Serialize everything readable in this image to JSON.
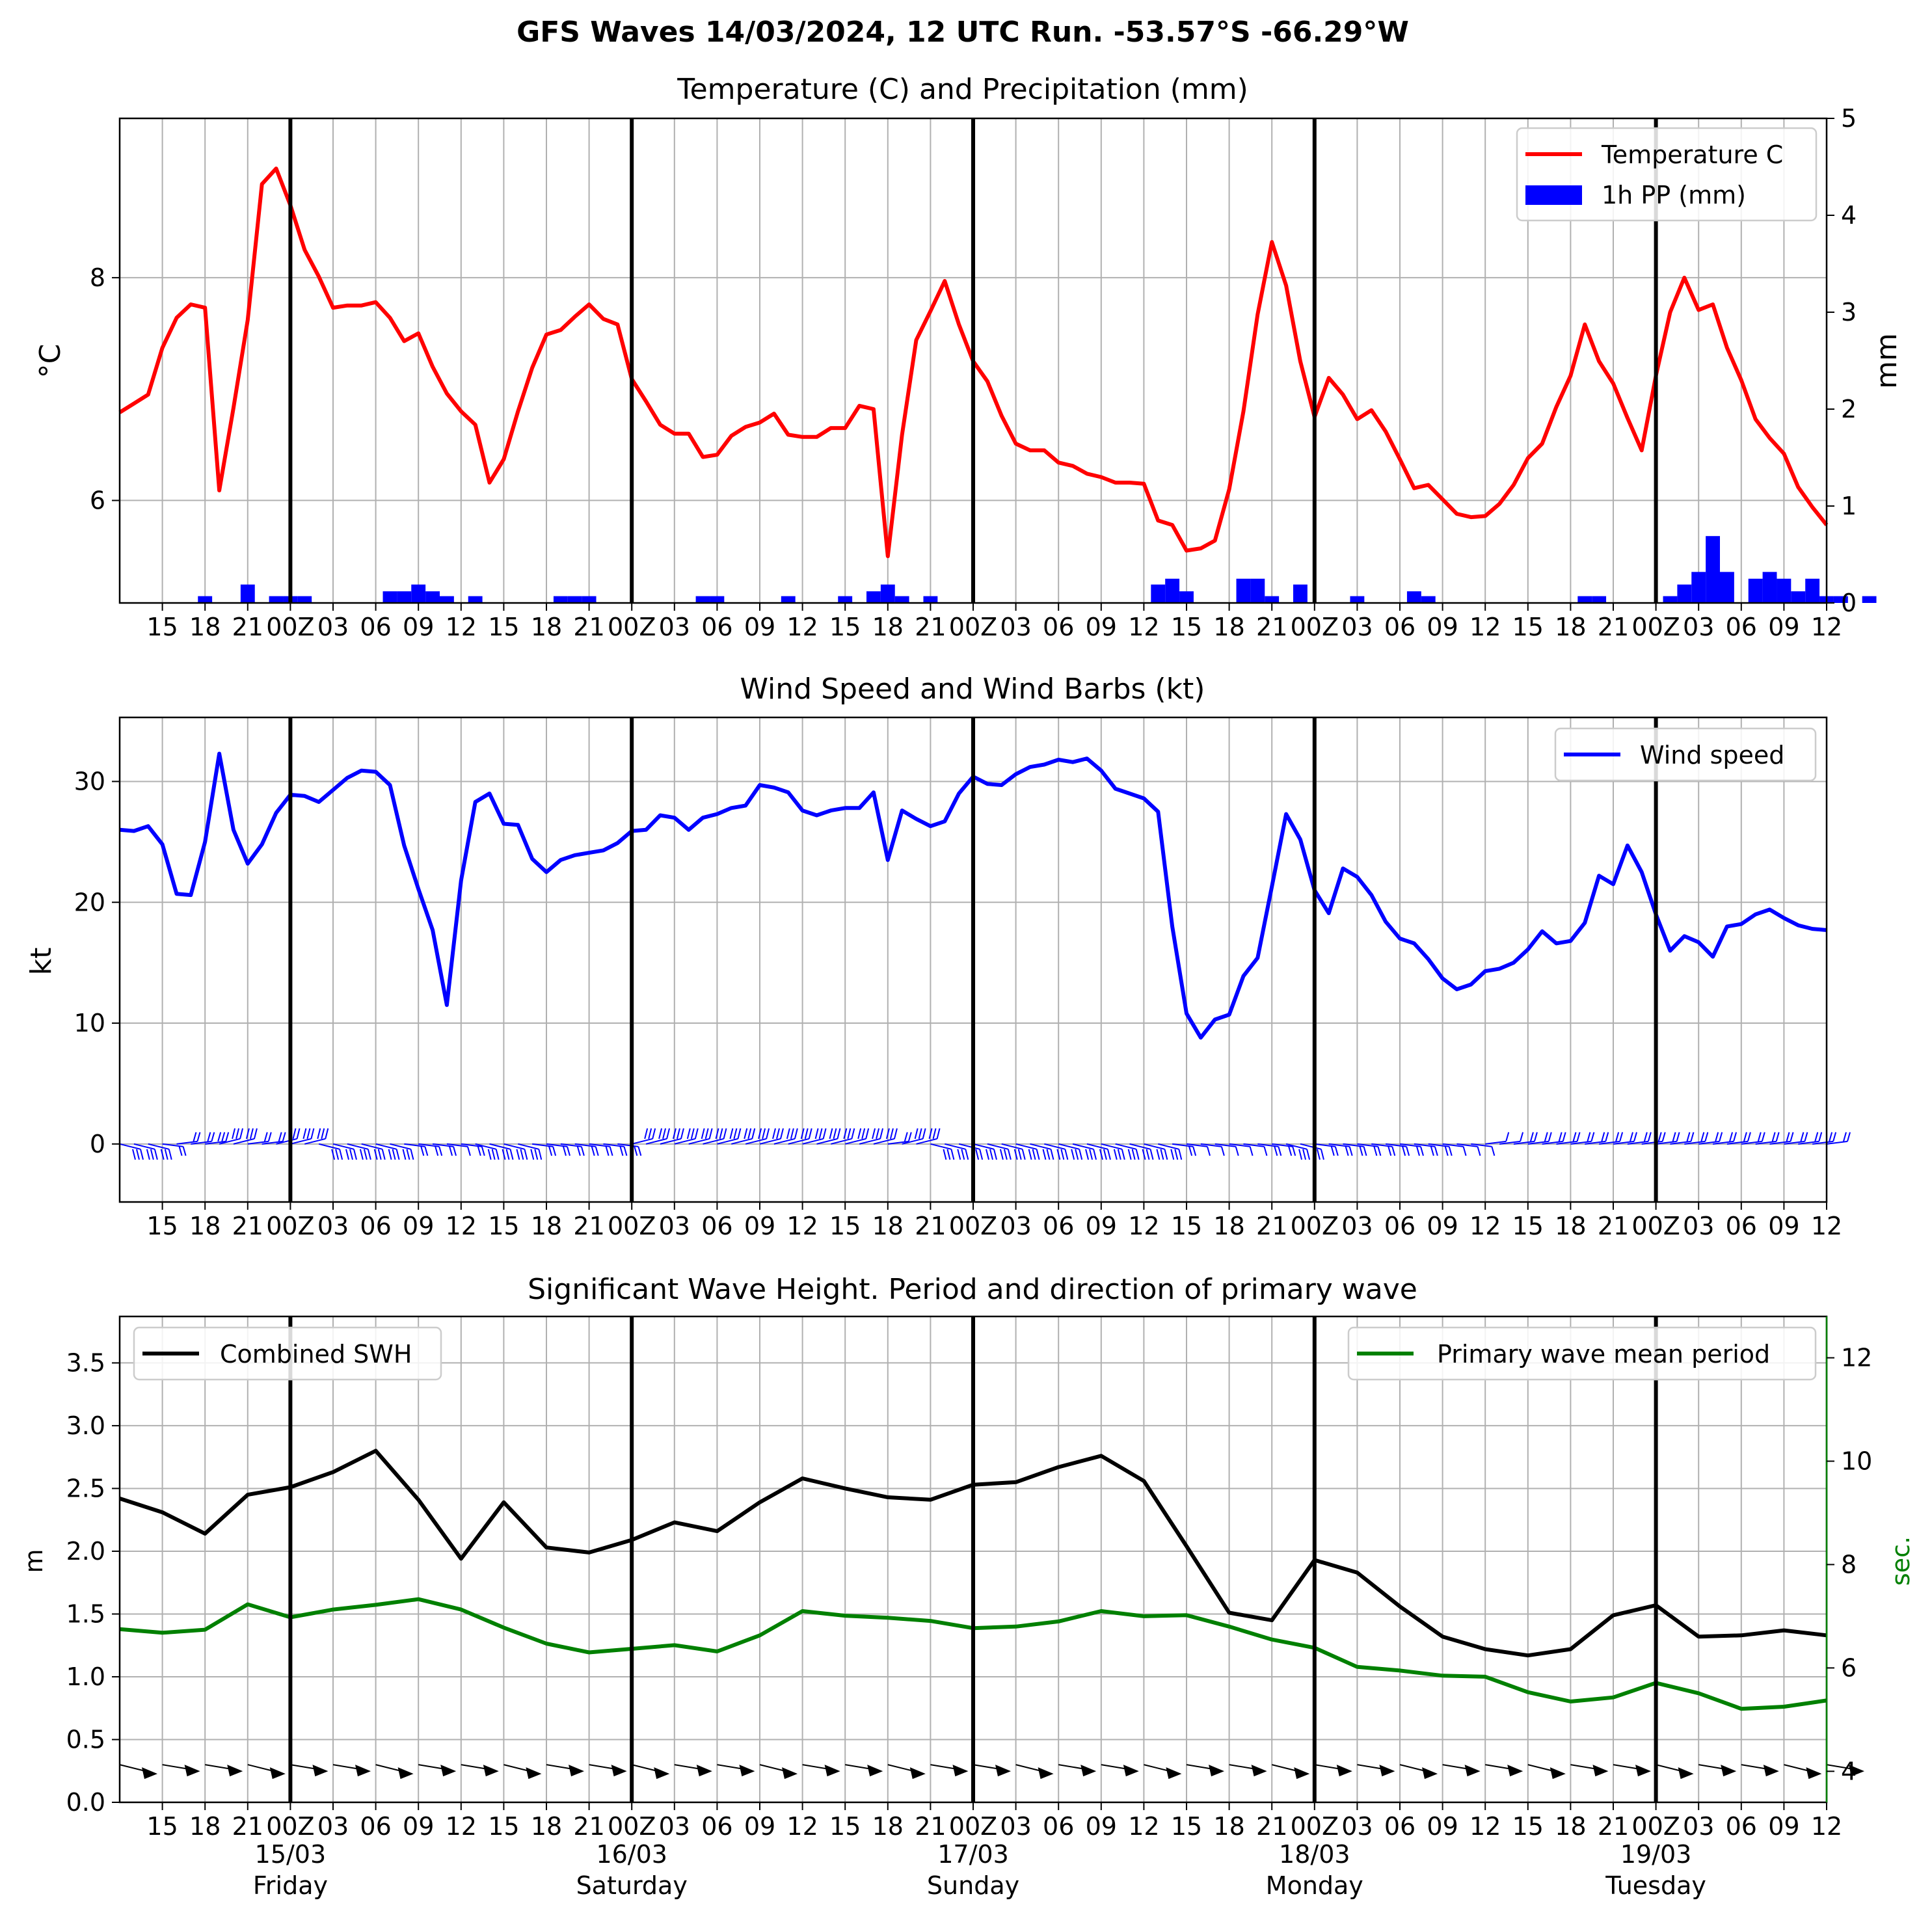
{
  "figure_title": "GFS Waves 14/03/2024, 12 UTC Run. -53.57°S -66.29°W",
  "colors": {
    "temperature": "#ff0000",
    "precip": "#0000ff",
    "wind": "#0000ff",
    "swh": "#000000",
    "period": "#008000",
    "grid": "#b0b0b0",
    "day_line": "#000000"
  },
  "x_axis": {
    "start": "2024-03-14 12:00 UTC",
    "end": "2024-03-19 12:00 UTC",
    "tick_labels": [
      "15",
      "18",
      "21",
      "00Z",
      "03",
      "06",
      "09",
      "12",
      "15",
      "18",
      "21",
      "00Z",
      "03",
      "06",
      "09",
      "12",
      "15",
      "18",
      "21",
      "00Z",
      "03",
      "06",
      "09",
      "12",
      "15",
      "18",
      "21",
      "00Z",
      "03",
      "06",
      "09",
      "12",
      "15",
      "18",
      "21",
      "00Z",
      "03",
      "06",
      "09",
      "12"
    ],
    "day_markers": [
      "2024-03-15",
      "2024-03-16",
      "2024-03-17",
      "2024-03-18",
      "2024-03-19"
    ],
    "date_labels": [
      {
        "date": "15/03",
        "day": "Friday"
      },
      {
        "date": "16/03",
        "day": "Saturday"
      },
      {
        "date": "17/03",
        "day": "Sunday"
      },
      {
        "date": "18/03",
        "day": "Monday"
      },
      {
        "date": "19/03",
        "day": "Tuesday"
      }
    ]
  },
  "chart_data": [
    {
      "type": "line",
      "title": "Temperature (C) and Precipitation (mm)",
      "ylabel": "$^\\circ$C",
      "ylabel_display": "°C",
      "y2label": "mm",
      "ylim": [
        5.08,
        9.43
      ],
      "y2lim": [
        0,
        5
      ],
      "yticks": [
        6,
        8
      ],
      "y2ticks": [
        0,
        1,
        2,
        3,
        4,
        5
      ],
      "legend": {
        "position": "top-right",
        "entries": [
          "Temperature C",
          "1h PP (mm)"
        ]
      },
      "x_step_hours": 1,
      "x_start": "2024-03-14 12:00 UTC",
      "series": [
        {
          "name": "Temperature C",
          "type": "line",
          "values": [
            6.79,
            6.87,
            6.95,
            7.37,
            7.64,
            7.76,
            7.73,
            6.09,
            6.83,
            7.62,
            8.84,
            8.98,
            8.65,
            8.25,
            8.01,
            7.73,
            7.75,
            7.75,
            7.78,
            7.64,
            7.43,
            7.5,
            7.2,
            6.96,
            6.8,
            6.68,
            6.16,
            6.37,
            6.8,
            7.19,
            7.49,
            7.53,
            7.65,
            7.76,
            7.63,
            7.58,
            7.09,
            6.89,
            6.68,
            6.6,
            6.6,
            6.39,
            6.41,
            6.58,
            6.66,
            6.7,
            6.78,
            6.59,
            6.57,
            6.57,
            6.65,
            6.65,
            6.85,
            6.82,
            5.5,
            6.59,
            7.44,
            7.7,
            7.97,
            7.58,
            7.25,
            7.07,
            6.76,
            6.51,
            6.45,
            6.45,
            6.34,
            6.31,
            6.24,
            6.21,
            6.16,
            6.16,
            6.15,
            5.82,
            5.78,
            5.55,
            5.57,
            5.64,
            6.1,
            6.8,
            7.67,
            8.32,
            7.93,
            7.25,
            6.75,
            7.1,
            6.95,
            6.73,
            6.81,
            6.62,
            6.37,
            6.11,
            6.14,
            6.01,
            5.88,
            5.85,
            5.86,
            5.97,
            6.14,
            6.38,
            6.51,
            6.84,
            7.12,
            7.58,
            7.25,
            7.05,
            6.74,
            6.45,
            7.12,
            7.69,
            8.0,
            7.71,
            7.76,
            7.37,
            7.08,
            6.73,
            6.56,
            6.42,
            6.12,
            5.94,
            5.78
          ]
        },
        {
          "name": "1h PP (mm)",
          "type": "bar",
          "values": [
            0,
            0,
            0,
            0,
            0,
            0,
            0.07,
            0,
            0,
            0.19,
            0,
            0.07,
            0.07,
            0.07,
            0,
            0,
            0,
            0,
            0,
            0.12,
            0.12,
            0.19,
            0.12,
            0.07,
            0,
            0.07,
            0,
            0,
            0,
            0,
            0,
            0.07,
            0.07,
            0.07,
            0,
            0,
            0,
            0,
            0,
            0,
            0,
            0.07,
            0.07,
            0,
            0,
            0,
            0,
            0.07,
            0,
            0,
            0,
            0.07,
            0,
            0.12,
            0.19,
            0.07,
            0,
            0.07,
            0,
            0,
            0,
            0,
            0,
            0,
            0,
            0,
            0,
            0,
            0,
            0,
            0,
            0,
            0,
            0.19,
            0.25,
            0.12,
            0,
            0,
            0,
            0.25,
            0.25,
            0.07,
            0,
            0.19,
            0,
            0,
            0,
            0.07,
            0,
            0,
            0,
            0.12,
            0.07,
            0,
            0,
            0,
            0,
            0,
            0,
            0,
            0,
            0,
            0,
            0.07,
            0.07,
            0,
            0,
            0,
            0,
            0.07,
            0.19,
            0.32,
            0.69,
            0.32,
            0,
            0.25,
            0.32,
            0.25,
            0.12,
            0.25,
            0.07,
            0.07,
            0,
            0.07,
            0,
            0
          ]
        }
      ]
    },
    {
      "type": "line",
      "title": "Wind Speed and Wind Barbs (kt)",
      "ylabel": "kt",
      "ylim": [
        -4.8,
        35.3
      ],
      "yticks": [
        0,
        10,
        20,
        30
      ],
      "legend": {
        "position": "top-right",
        "entries": [
          "Wind speed"
        ]
      },
      "x_step_hours": 1,
      "x_start": "2024-03-14 12:00 UTC",
      "series": [
        {
          "name": "Wind speed",
          "values": [
            26.0,
            25.9,
            26.3,
            24.8,
            20.7,
            20.6,
            25.0,
            32.3,
            26.0,
            23.2,
            24.8,
            27.4,
            28.9,
            28.8,
            28.3,
            29.3,
            30.3,
            30.9,
            30.8,
            29.7,
            24.7,
            21.1,
            17.7,
            11.5,
            21.8,
            28.3,
            29.0,
            26.5,
            26.4,
            23.6,
            22.5,
            23.5,
            23.9,
            24.1,
            24.3,
            24.9,
            25.9,
            26.0,
            27.2,
            27.0,
            26.0,
            27.0,
            27.3,
            27.8,
            28.0,
            29.7,
            29.5,
            29.1,
            27.6,
            27.2,
            27.6,
            27.8,
            27.8,
            29.1,
            23.5,
            27.6,
            26.9,
            26.3,
            26.7,
            29.0,
            30.4,
            29.8,
            29.7,
            30.6,
            31.2,
            31.4,
            31.8,
            31.6,
            31.9,
            30.9,
            29.4,
            29.0,
            28.6,
            27.5,
            18.0,
            10.8,
            8.8,
            10.3,
            10.7,
            13.9,
            15.4,
            21.3,
            27.3,
            25.2,
            21.0,
            19.1,
            22.8,
            22.1,
            20.6,
            18.4,
            17.0,
            16.6,
            15.3,
            13.7,
            12.8,
            13.2,
            14.3,
            14.5,
            15.0,
            16.1,
            17.6,
            16.6,
            16.8,
            18.3,
            22.2,
            21.5,
            24.7,
            22.5,
            19.0,
            16.0,
            17.2,
            16.7,
            15.5,
            18.0,
            18.2,
            19.0,
            19.4,
            18.7,
            18.1,
            17.8,
            17.7
          ]
        }
      ],
      "wind_barbs": "row of wind barbs drawn along 0 kt"
    },
    {
      "type": "line",
      "title": "Significant Wave Height. Period and direction of primary wave",
      "ylabel": "m",
      "y2label": "sec.",
      "ylim": [
        0.0,
        3.87
      ],
      "y2lim": [
        3.4,
        12.8
      ],
      "yticks": [
        0.0,
        0.5,
        1.0,
        1.5,
        2.0,
        2.5,
        3.0,
        3.5
      ],
      "y2ticks": [
        4,
        6,
        8,
        10,
        12
      ],
      "legends": [
        {
          "position": "top-left",
          "entries": [
            "Combined SWH"
          ]
        },
        {
          "position": "top-right",
          "entries": [
            "Primary wave mean period"
          ]
        }
      ],
      "x_step_hours": 3,
      "x_start": "2024-03-14 12:00 UTC",
      "series": [
        {
          "name": "Combined SWH",
          "axis": "left",
          "values": [
            2.42,
            2.31,
            2.14,
            2.45,
            2.51,
            2.63,
            2.8,
            2.41,
            1.94,
            2.39,
            2.03,
            1.99,
            2.09,
            2.23,
            2.16,
            2.39,
            2.58,
            2.5,
            2.43,
            2.41,
            2.53,
            2.55,
            2.67,
            2.76,
            2.56,
            2.04,
            1.51,
            1.45,
            1.93,
            1.83,
            1.56,
            1.32,
            1.22,
            1.17,
            1.22,
            1.49,
            1.57,
            1.32,
            1.33,
            1.37,
            1.33
          ]
        },
        {
          "name": "Primary wave mean period",
          "axis": "right",
          "values": [
            6.75,
            6.68,
            6.74,
            7.23,
            6.98,
            7.13,
            7.22,
            7.33,
            7.13,
            6.78,
            6.47,
            6.3,
            6.37,
            6.44,
            6.32,
            6.63,
            7.1,
            7.01,
            6.97,
            6.91,
            6.77,
            6.8,
            6.9,
            7.1,
            7.0,
            7.02,
            6.8,
            6.55,
            6.39,
            6.02,
            5.95,
            5.85,
            5.83,
            5.53,
            5.35,
            5.43,
            5.71,
            5.51,
            5.21,
            5.25,
            5.37
          ]
        }
      ],
      "direction_arrows": "row of primary wave direction arrows drawn near 0.3 m"
    }
  ]
}
